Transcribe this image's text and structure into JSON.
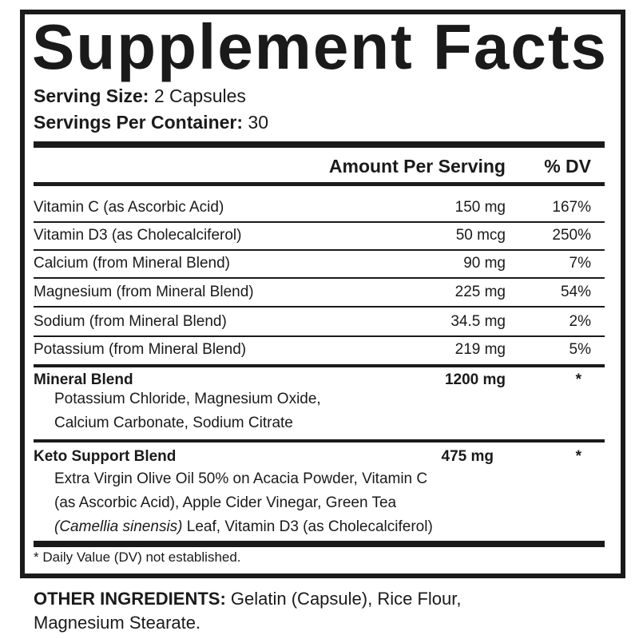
{
  "title": "Supplement Facts",
  "serving_size": {
    "label": "Serving Size:",
    "value": "2 Capsules"
  },
  "servings_per_container": {
    "label": "Servings Per Container:",
    "value": "30"
  },
  "header": {
    "amount": "Amount Per Serving",
    "dv": "% DV"
  },
  "nutrients": [
    {
      "name": "Vitamin C (as Ascorbic Acid)",
      "amount": "150 mg",
      "dv": "167%"
    },
    {
      "name": "Vitamin D3 (as Cholecalciferol)",
      "amount": "50 mcg",
      "dv": "250%"
    },
    {
      "name": "Calcium (from Mineral Blend)",
      "amount": "90 mg",
      "dv": "7%"
    },
    {
      "name": "Magnesium (from Mineral Blend)",
      "amount": "225 mg",
      "dv": "54%"
    },
    {
      "name": "Sodium (from Mineral Blend)",
      "amount": "34.5 mg",
      "dv": "2%"
    },
    {
      "name": "Potassium (from Mineral Blend)",
      "amount": "219 mg",
      "dv": "5%"
    }
  ],
  "mineral_blend": {
    "name": "Mineral Blend",
    "amount": "1200 mg",
    "dv": "*",
    "lines": [
      "Potassium Chloride, Magnesium Oxide,",
      "Calcium Carbonate, Sodium Citrate"
    ]
  },
  "keto_blend": {
    "name": "Keto Support Blend",
    "amount": "475 mg",
    "dv": "*",
    "line1": "Extra Virgin Olive Oil 50% on Acacia Powder, Vitamin C",
    "line2": "(as Ascorbic Acid), Apple Cider Vinegar, Green Tea",
    "line3_italic": "(Camellia sinensis)",
    "line3_rest": " Leaf, Vitamin D3 (as Cholecalciferol)"
  },
  "footnote": "* Daily Value (DV) not established.",
  "other_ingredients": {
    "label": "OTHER INGREDIENTS:",
    "line1": " Gelatin (Capsule), Rice Flour,",
    "line2": "Magnesium Stearate."
  }
}
